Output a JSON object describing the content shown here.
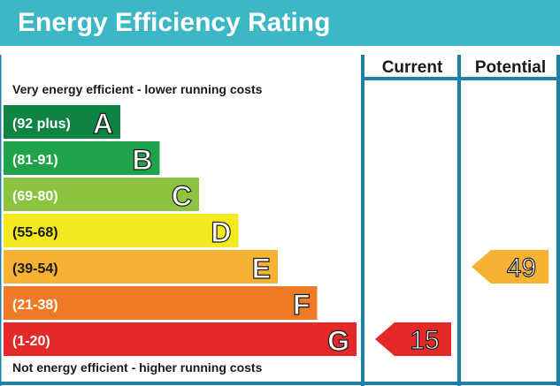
{
  "title": "Energy Efficiency Rating",
  "columns": {
    "current": "Current",
    "potential": "Potential"
  },
  "top_note": "Very energy efficient - lower running costs",
  "bottom_note": "Not energy efficient - higher running costs",
  "colors": {
    "title_bar": "#3db7c6",
    "frame": "#1f7fa6"
  },
  "chart_data": {
    "type": "bar",
    "title": "Energy Efficiency Rating",
    "categories": [
      "A",
      "B",
      "C",
      "D",
      "E",
      "F",
      "G"
    ],
    "ranges": [
      "(92 plus)",
      "(81-91)",
      "(69-80)",
      "(55-68)",
      "(39-54)",
      "(21-38)",
      "(1-20)"
    ],
    "colors": [
      "#0e8444",
      "#1fa34a",
      "#8cc43f",
      "#f4e81f",
      "#f6b232",
      "#ef7a26",
      "#e42928"
    ],
    "current": {
      "label": "Current",
      "value": 15,
      "band": "G",
      "color": "#e42928"
    },
    "potential": {
      "label": "Potential",
      "value": 49,
      "band": "E",
      "color": "#f6b232"
    }
  }
}
